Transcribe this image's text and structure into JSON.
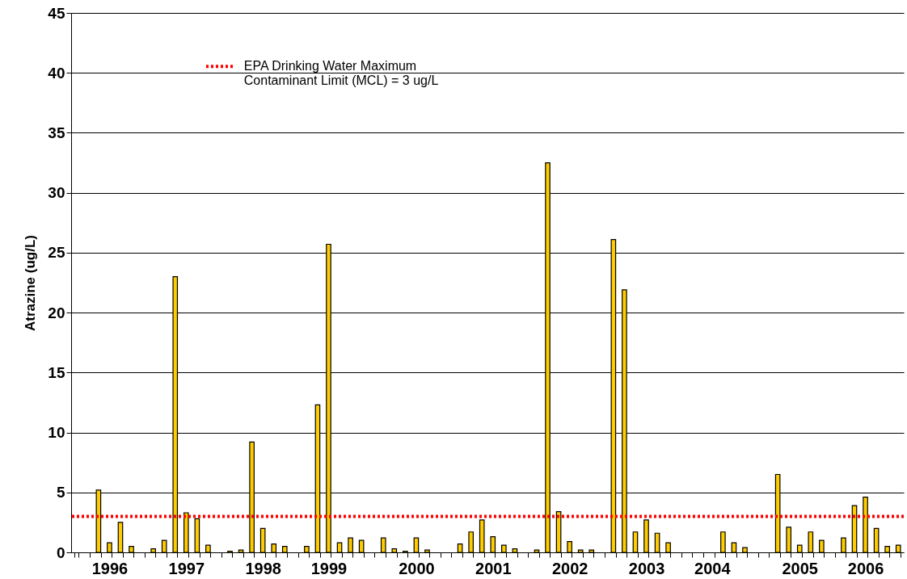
{
  "chart_data": {
    "type": "bar",
    "ylabel": "Atrazine (ug/L)",
    "categories": [
      null,
      null,
      null,
      "1996",
      null,
      null,
      null,
      null,
      null,
      null,
      "1997",
      null,
      null,
      null,
      null,
      null,
      null,
      "1998",
      null,
      null,
      null,
      null,
      null,
      "1999",
      null,
      null,
      null,
      null,
      null,
      null,
      null,
      "2000",
      null,
      null,
      null,
      null,
      null,
      null,
      "2001",
      null,
      null,
      null,
      null,
      null,
      null,
      "2002",
      null,
      null,
      null,
      null,
      null,
      null,
      "2003",
      null,
      null,
      null,
      null,
      null,
      "2004",
      null,
      null,
      null,
      null,
      null,
      null,
      null,
      "2005",
      null,
      null,
      null,
      null,
      null,
      "2006",
      null,
      null,
      null
    ],
    "values": [
      null,
      null,
      5.2,
      0.8,
      2.5,
      0.5,
      null,
      0.3,
      1.0,
      23.0,
      3.3,
      2.8,
      0.6,
      null,
      0.1,
      0.2,
      9.2,
      2.0,
      0.7,
      0.5,
      null,
      0.5,
      12.3,
      25.7,
      0.8,
      1.2,
      1.0,
      null,
      1.2,
      0.3,
      0.1,
      1.2,
      0.2,
      null,
      null,
      0.7,
      1.7,
      2.7,
      1.3,
      0.6,
      0.3,
      null,
      0.2,
      32.5,
      3.4,
      0.9,
      0.2,
      0.2,
      null,
      26.1,
      21.9,
      1.7,
      2.7,
      1.6,
      0.8,
      null,
      null,
      null,
      null,
      1.7,
      0.8,
      0.4,
      null,
      null,
      6.5,
      2.1,
      0.6,
      1.7,
      1.0,
      null,
      1.2,
      3.9,
      4.6,
      2.0,
      0.5,
      0.6
    ],
    "color": "#ffcc00",
    "ylim": [
      0,
      45
    ],
    "yticks": [
      0,
      5,
      10,
      15,
      20,
      25,
      30,
      35,
      40,
      45
    ],
    "grid": "y",
    "legend": "top left",
    "ref_lines": [
      {
        "axis": "y",
        "value": 3,
        "label": "EPA Drinking Water Maximum\nContaminant Limit (MCL) = 3 ug/L",
        "color": "#ff0000",
        "line_style": "dotted"
      }
    ]
  }
}
